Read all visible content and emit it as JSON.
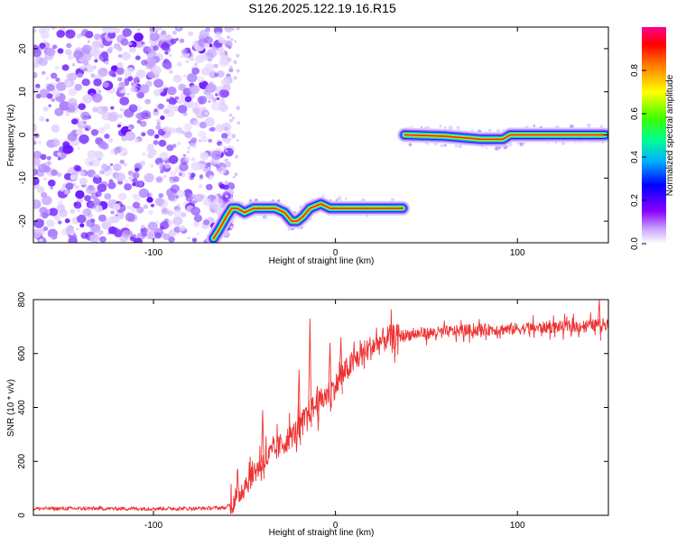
{
  "chart_data": [
    {
      "type": "heatmap",
      "title": "S126.2025.122.19.16.R15",
      "xlabel": "Height of straight line (km)",
      "ylabel": "Frequency (Hz)",
      "xlim": [
        -166,
        150
      ],
      "ylim": [
        -25,
        25
      ],
      "x_ticks": [
        -100,
        0,
        100
      ],
      "y_ticks": [
        -20,
        -10,
        0,
        10,
        20
      ],
      "colorbar": {
        "label": "Normalized spectral amplitude",
        "range": [
          0,
          1
        ],
        "ticks": [
          0.0,
          0.2,
          0.4,
          0.6,
          0.8
        ],
        "tick_labels": [
          "0.0",
          "0.2",
          "0.4",
          "0.6",
          "0.8"
        ],
        "colormap": [
          "#ffffff",
          "#8b00ff",
          "#0000ff",
          "#00c0ff",
          "#00ff80",
          "#40ff00",
          "#ffff00",
          "#ff8000",
          "#ff0000",
          "#ff0090"
        ]
      },
      "noise_region_x": [
        -166,
        -62
      ],
      "ridge": [
        {
          "x": -67,
          "y": -24
        },
        {
          "x": -64,
          "y": -22
        },
        {
          "x": -60,
          "y": -19
        },
        {
          "x": -57,
          "y": -17
        },
        {
          "x": -54,
          "y": -17
        },
        {
          "x": -50,
          "y": -18
        },
        {
          "x": -45,
          "y": -17
        },
        {
          "x": -40,
          "y": -17
        },
        {
          "x": -33,
          "y": -17
        },
        {
          "x": -28,
          "y": -18
        },
        {
          "x": -24,
          "y": -20
        },
        {
          "x": -21,
          "y": -20
        },
        {
          "x": -18,
          "y": -19
        },
        {
          "x": -14,
          "y": -17
        },
        {
          "x": -8,
          "y": -16
        },
        {
          "x": -3,
          "y": -17
        },
        {
          "x": 10,
          "y": -17
        },
        {
          "x": 25,
          "y": -17
        },
        {
          "x": 37,
          "y": -17
        },
        {
          "x": null,
          "y": null
        },
        {
          "x": 38,
          "y": 0
        },
        {
          "x": 60,
          "y": -0.3
        },
        {
          "x": 80,
          "y": -1
        },
        {
          "x": 92,
          "y": -1
        },
        {
          "x": 96,
          "y": 0
        },
        {
          "x": 120,
          "y": 0
        },
        {
          "x": 148,
          "y": 0
        }
      ]
    },
    {
      "type": "line",
      "xlabel": "Height of straight line (km)",
      "ylabel": "SNR (10 * v/v)",
      "xlim": [
        -166,
        150
      ],
      "ylim": [
        0,
        800
      ],
      "x_ticks": [
        -100,
        0,
        100
      ],
      "y_ticks": [
        0,
        200,
        400,
        600,
        800
      ],
      "color": "#ee3333",
      "series": [
        {
          "x": [
            -166,
            -140,
            -110,
            -80,
            -60,
            -55,
            -50,
            -45,
            -40,
            -35,
            -30,
            -25,
            -20,
            -15,
            -12,
            -10,
            -5,
            0,
            5,
            10,
            15,
            20,
            25,
            30,
            35,
            40,
            50,
            60,
            70,
            80,
            90,
            100,
            110,
            120,
            130,
            140,
            150
          ],
          "y": [
            25,
            25,
            25,
            25,
            28,
            60,
            110,
            160,
            195,
            230,
            260,
            290,
            320,
            380,
            400,
            410,
            445,
            480,
            530,
            570,
            600,
            625,
            645,
            660,
            665,
            670,
            675,
            680,
            685,
            688,
            690,
            692,
            695,
            698,
            700,
            705,
            712
          ]
        }
      ],
      "spikes": [
        {
          "x": -40,
          "y": 390
        },
        {
          "x": -20,
          "y": 540
        },
        {
          "x": -14,
          "y": 730
        },
        {
          "x": -10,
          "y": 480
        },
        {
          "x": -3,
          "y": 640
        },
        {
          "x": 3,
          "y": 660
        },
        {
          "x": 145,
          "y": 800
        }
      ]
    }
  ]
}
